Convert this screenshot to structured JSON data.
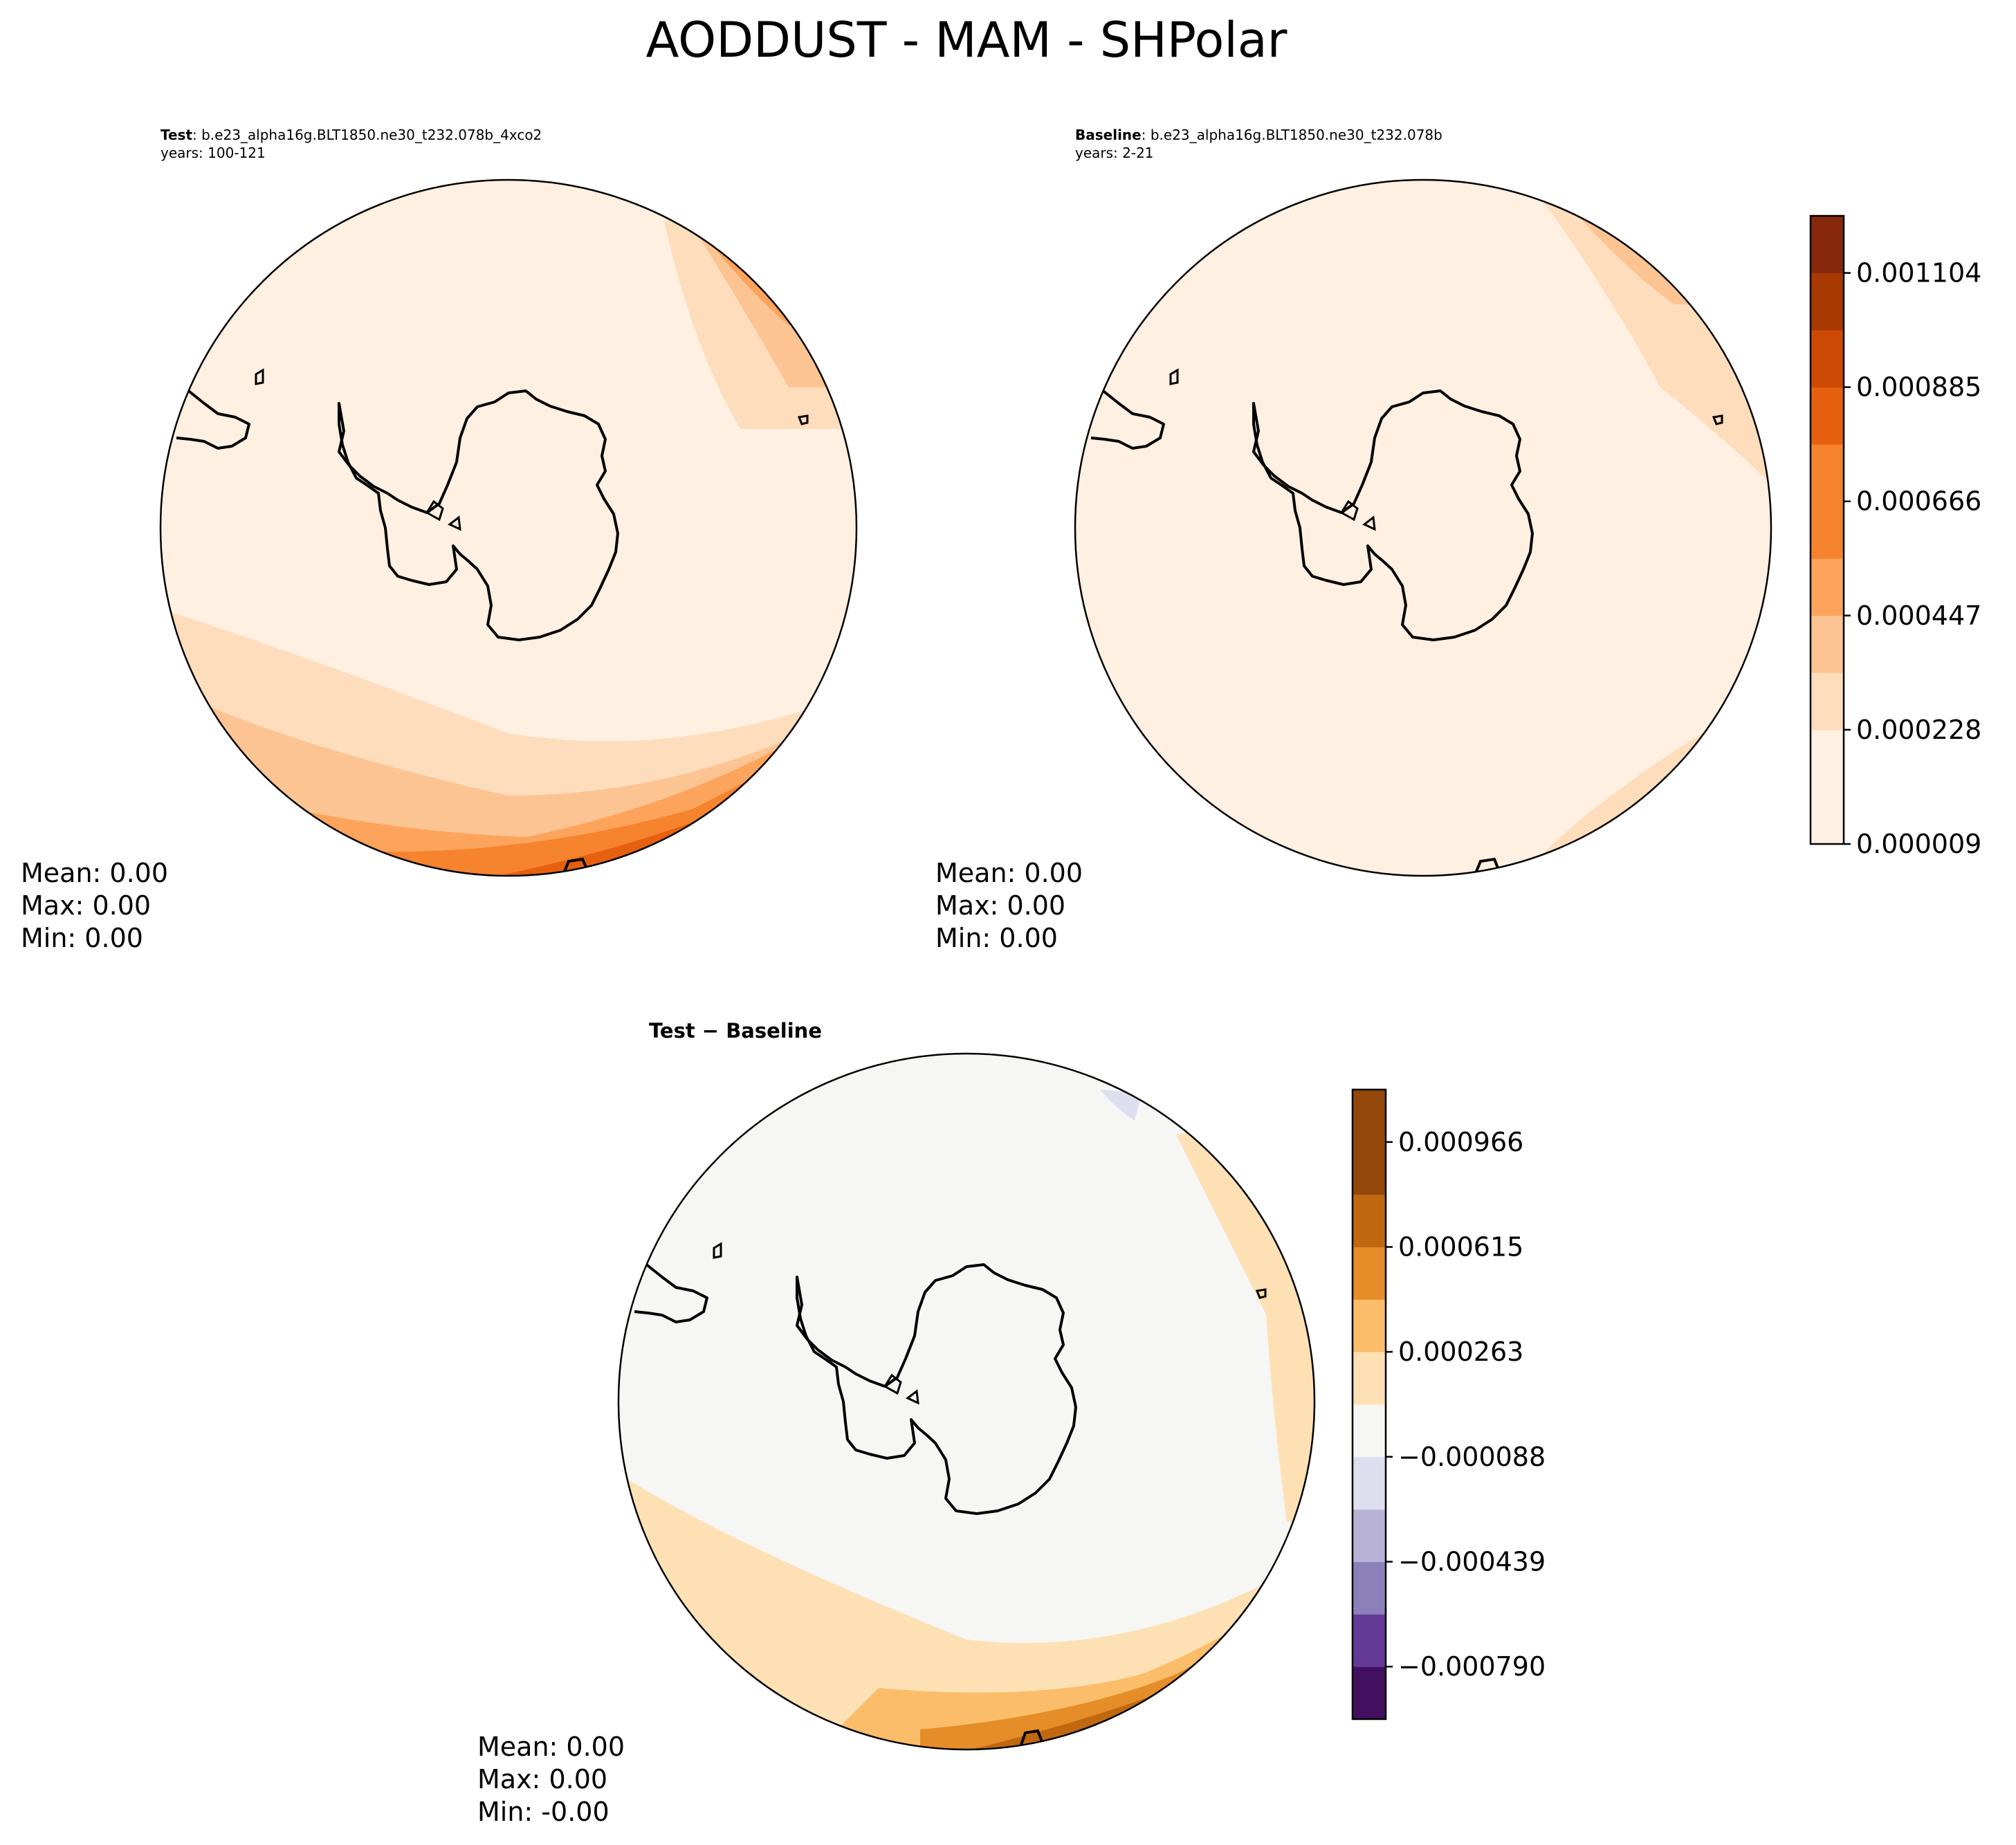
{
  "figure": {
    "title": "AODDUST - MAM - SHPolar"
  },
  "panels": {
    "test": {
      "label_bold": "Test",
      "label_rest": ": b.e23_alpha16g.BLT1850.ne30_t232.078b_4xco2",
      "years": "years: 100-121",
      "stats": {
        "mean": "Mean:  0.00",
        "max": "Max:  0.00",
        "min": "Min:  0.00"
      }
    },
    "baseline": {
      "label_bold": "Baseline",
      "label_rest": ": b.e23_alpha16g.BLT1850.ne30_t232.078b",
      "years": "years: 2-21",
      "stats": {
        "mean": "Mean:  0.00",
        "max": "Max:  0.00",
        "min": "Min:  0.00"
      }
    },
    "diff": {
      "title": "Test − Baseline",
      "stats": {
        "mean": "Mean:  0.00",
        "max": "Max:  0.00",
        "min": "Min: -0.00"
      }
    }
  },
  "colorbars": {
    "main": {
      "colors": [
        "#fff0e1",
        "#feddbd",
        "#fdc493",
        "#fda45c",
        "#f6832e",
        "#e6600f",
        "#cc4a04",
        "#a83903",
        "#86280b"
      ],
      "ticks": [
        "0.000009",
        "0.000228",
        "0.000447",
        "0.000666",
        "0.000885",
        "0.001104"
      ],
      "tick_levels": [
        0,
        2,
        4,
        6,
        8,
        10
      ],
      "n_levels": 11
    },
    "diff": {
      "colors": [
        "#43105f",
        "#653a96",
        "#8b80ba",
        "#b9b2d7",
        "#dddfef",
        "#f6f6f5",
        "#fde1b5",
        "#fcbd6a",
        "#e58d28",
        "#c06810",
        "#94470b"
      ],
      "ticks": [
        "−0.000790",
        "−0.000439",
        "−0.000088",
        "0.000263",
        "0.000615",
        "0.000966"
      ],
      "tick_levels": [
        1,
        3,
        5,
        7,
        9,
        11
      ],
      "n_levels": 12
    }
  },
  "chart_data": [
    {
      "type": "heatmap",
      "title": "Test : b.e23_alpha16g.BLT1850.ne30_t232.078b_4xco2",
      "projection": "South polar stereographic",
      "variable": "AODDUST",
      "season": "MAM",
      "colorbar_ticks": [
        9e-06,
        0.000228,
        0.000447,
        0.000666,
        0.000885,
        0.001104
      ],
      "stats": {
        "mean": 0.0,
        "max": 0.0,
        "min": 0.0
      }
    },
    {
      "type": "heatmap",
      "title": "Baseline : b.e23_alpha16g.BLT1850.ne30_t232.078b",
      "projection": "South polar stereographic",
      "variable": "AODDUST",
      "season": "MAM",
      "colorbar_ticks": [
        9e-06,
        0.000228,
        0.000447,
        0.000666,
        0.000885,
        0.001104
      ],
      "stats": {
        "mean": 0.0,
        "max": 0.0,
        "min": 0.0
      }
    },
    {
      "type": "heatmap",
      "title": "Test − Baseline",
      "projection": "South polar stereographic",
      "variable": "AODDUST",
      "season": "MAM",
      "colorbar_ticks": [
        -0.00079,
        -0.000439,
        -8.8e-05,
        0.000263,
        0.000615,
        0.000966
      ],
      "stats": {
        "mean": 0.0,
        "max": 0.0,
        "min": -0.0
      }
    }
  ]
}
